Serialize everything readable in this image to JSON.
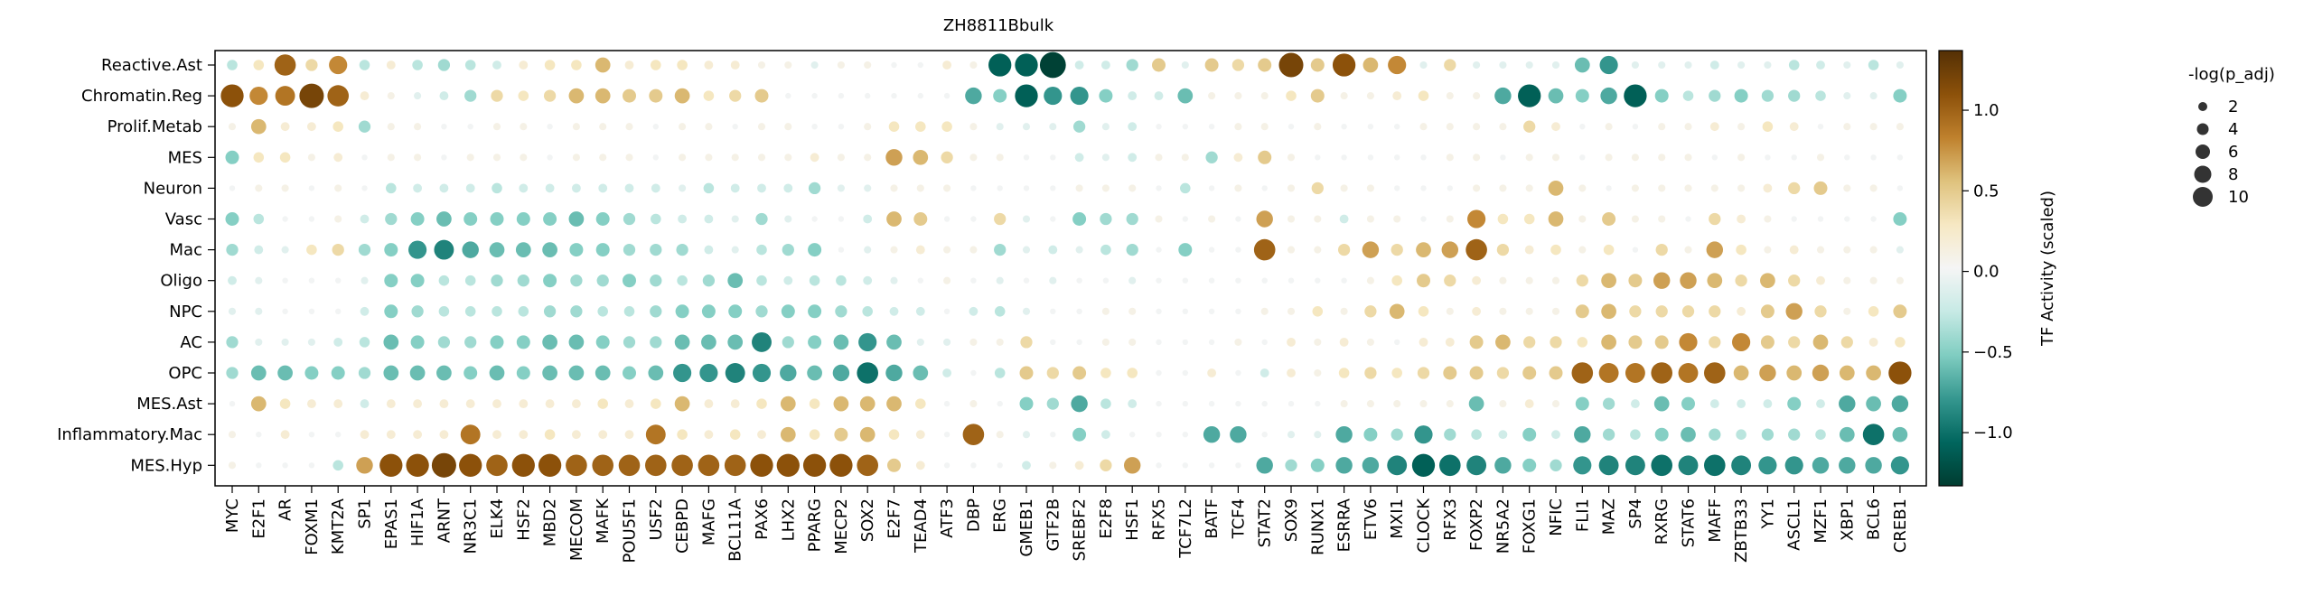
{
  "chart_data": {
    "type": "dotplot",
    "title": "ZH8811Bbulk",
    "rows": [
      "Reactive.Ast",
      "Chromatin.Reg",
      "Prolif.Metab",
      "MES",
      "Neuron",
      "Vasc",
      "Mac",
      "Oligo",
      "NPC",
      "AC",
      "OPC",
      "MES.Ast",
      "Inflammatory.Mac",
      "MES.Hyp"
    ],
    "columns": [
      "MYC",
      "E2F1",
      "AR",
      "FOXM1",
      "KMT2A",
      "SP1",
      "EPAS1",
      "HIF1A",
      "ARNT",
      "NR3C1",
      "ELK4",
      "HSF2",
      "MBD2",
      "MECOM",
      "MAFK",
      "POU5F1",
      "USF2",
      "CEBPD",
      "MAFG",
      "BCL11A",
      "PAX6",
      "LHX2",
      "PPARG",
      "MECP2",
      "SOX2",
      "E2F7",
      "TEAD4",
      "ATF3",
      "DBP",
      "ERG",
      "GMEB1",
      "GTF2B",
      "SREBF2",
      "E2F8",
      "HSF1",
      "RFX5",
      "TCF7L2",
      "BATF",
      "TCF4",
      "STAT2",
      "SOX9",
      "RUNX1",
      "ESRRA",
      "ETV6",
      "MXI1",
      "CLOCK",
      "RFX3",
      "FOXP2",
      "NR5A2",
      "FOXG1",
      "NFIC",
      "FLI1",
      "MAZ",
      "SP4",
      "RXRG",
      "STAT6",
      "MAFF",
      "ZBTB33",
      "YY1",
      "ASCL1",
      "MZF1",
      "XBP1",
      "BCL6",
      "CREB1"
    ],
    "activity": [
      [
        -0.3,
        0.3,
        1.0,
        0.4,
        0.8,
        -0.3,
        0.2,
        -0.3,
        -0.4,
        -0.3,
        -0.2,
        0.2,
        0.3,
        0.3,
        0.6,
        0.2,
        0.3,
        0.3,
        0.2,
        0.2,
        0.1,
        0.1,
        -0.1,
        0.1,
        0.1,
        0.0,
        0.0,
        0.2,
        0.1,
        -1.1,
        -1.1,
        -1.3,
        -0.2,
        -0.2,
        -0.4,
        0.5,
        -0.1,
        0.5,
        0.4,
        0.5,
        1.2,
        0.5,
        1.1,
        0.6,
        0.8,
        -0.1,
        0.4,
        -0.1,
        -0.1,
        -0.1,
        -0.1,
        -0.6,
        -0.8,
        -0.1,
        -0.1,
        -0.1,
        -0.2,
        -0.1,
        -0.1,
        -0.3,
        -0.2,
        -0.1,
        -0.3,
        -0.1
      ],
      [
        1.1,
        0.8,
        0.9,
        1.2,
        1.0,
        0.2,
        0.1,
        -0.1,
        -0.2,
        -0.4,
        0.4,
        0.3,
        0.4,
        0.6,
        0.6,
        0.5,
        0.5,
        0.6,
        0.3,
        0.4,
        0.5,
        0.0,
        0.0,
        0.0,
        0.0,
        0.0,
        0.0,
        0.0,
        -0.7,
        -0.5,
        -1.1,
        -0.8,
        -0.8,
        -0.5,
        -0.2,
        -0.2,
        -0.6,
        0.1,
        0.1,
        0.1,
        0.3,
        0.5,
        0.1,
        0.1,
        0.2,
        0.3,
        0.1,
        0.1,
        -0.7,
        -1.1,
        -0.6,
        -0.5,
        -0.7,
        -1.1,
        -0.5,
        -0.3,
        -0.4,
        -0.5,
        -0.4,
        -0.4,
        -0.3,
        -0.1,
        -0.1,
        -0.5
      ],
      [
        0.1,
        0.6,
        0.2,
        0.2,
        0.3,
        -0.4,
        0.1,
        0.1,
        0.0,
        0.0,
        0.1,
        0.1,
        0.0,
        0.1,
        0.1,
        0.1,
        0.0,
        0.1,
        0.1,
        0.0,
        0.1,
        0.1,
        0.0,
        0.0,
        0.1,
        0.3,
        0.3,
        0.3,
        0.1,
        -0.1,
        -0.1,
        -0.1,
        -0.4,
        -0.1,
        -0.2,
        0.0,
        0.0,
        0.0,
        0.1,
        0.1,
        0.0,
        0.1,
        0.0,
        0.0,
        0.0,
        0.1,
        0.1,
        0.1,
        0.1,
        0.4,
        0.2,
        0.0,
        0.1,
        0.0,
        0.1,
        0.1,
        0.2,
        0.1,
        0.3,
        0.2,
        0.0,
        0.1,
        0.1,
        0.1
      ],
      [
        -0.5,
        0.3,
        0.3,
        0.1,
        0.2,
        0.0,
        0.1,
        0.1,
        0.0,
        0.1,
        0.1,
        0.1,
        0.0,
        0.1,
        0.1,
        0.1,
        0.0,
        0.1,
        0.1,
        0.1,
        0.1,
        0.1,
        0.2,
        0.1,
        0.1,
        0.7,
        0.6,
        0.4,
        0.1,
        0.1,
        0.0,
        0.0,
        -0.2,
        -0.1,
        -0.2,
        0.1,
        0.1,
        -0.4,
        0.2,
        0.5,
        0.1,
        0.0,
        0.0,
        0.0,
        0.0,
        0.0,
        0.1,
        0.1,
        0.0,
        0.1,
        0.1,
        0.0,
        0.1,
        0.1,
        0.1,
        0.1,
        0.0,
        0.1,
        0.0,
        0.0,
        0.1,
        0.0,
        0.0,
        0.0
      ],
      [
        0.0,
        0.1,
        0.1,
        0.0,
        0.1,
        0.0,
        -0.3,
        -0.2,
        -0.2,
        -0.2,
        -0.3,
        -0.2,
        -0.2,
        -0.2,
        -0.2,
        -0.2,
        -0.2,
        -0.1,
        -0.3,
        -0.2,
        -0.2,
        -0.2,
        -0.4,
        -0.1,
        -0.1,
        0.1,
        0.1,
        0.1,
        0.0,
        0.0,
        0.0,
        0.0,
        0.1,
        0.1,
        0.1,
        0.0,
        -0.3,
        0.0,
        0.1,
        0.0,
        0.1,
        0.4,
        0.1,
        0.1,
        0.0,
        0.0,
        0.0,
        0.1,
        0.1,
        0.1,
        0.6,
        0.1,
        0.0,
        0.1,
        0.1,
        0.1,
        0.1,
        0.1,
        0.2,
        0.4,
        0.5,
        0.1,
        0.1,
        0.0
      ],
      [
        -0.5,
        -0.3,
        0.0,
        0.0,
        0.1,
        -0.2,
        -0.4,
        -0.5,
        -0.6,
        -0.5,
        -0.5,
        -0.5,
        -0.5,
        -0.6,
        -0.5,
        -0.4,
        -0.3,
        -0.2,
        -0.2,
        -0.1,
        -0.4,
        -0.1,
        0.0,
        0.0,
        -0.2,
        0.6,
        0.5,
        0.0,
        0.0,
        0.4,
        -0.1,
        0.0,
        -0.5,
        -0.4,
        -0.4,
        0.1,
        0.0,
        0.1,
        0.0,
        0.7,
        0.1,
        0.1,
        -0.2,
        0.1,
        0.1,
        0.0,
        0.1,
        0.8,
        0.3,
        0.3,
        0.6,
        0.1,
        0.5,
        0.1,
        0.1,
        0.0,
        0.4,
        0.2,
        0.1,
        0.0,
        0.0,
        0.0,
        0.0,
        -0.5
      ],
      [
        -0.4,
        -0.2,
        -0.1,
        0.3,
        0.4,
        -0.4,
        -0.5,
        -0.8,
        -0.9,
        -0.7,
        -0.6,
        -0.6,
        -0.6,
        -0.5,
        -0.5,
        -0.4,
        -0.4,
        -0.4,
        -0.2,
        -0.1,
        -0.3,
        -0.4,
        -0.5,
        0.0,
        -0.1,
        0.1,
        0.2,
        0.1,
        0.1,
        -0.4,
        -0.1,
        -0.2,
        -0.1,
        -0.3,
        -0.4,
        0.0,
        -0.5,
        0.0,
        0.0,
        1.0,
        0.1,
        0.1,
        0.4,
        0.7,
        0.4,
        0.6,
        0.7,
        1.0,
        0.4,
        0.2,
        0.3,
        0.1,
        0.3,
        0.0,
        0.4,
        0.1,
        0.7,
        0.3,
        0.1,
        0.2,
        0.1,
        0.1,
        0.1,
        -0.1
      ],
      [
        -0.2,
        -0.1,
        0.0,
        0.0,
        0.0,
        -0.1,
        -0.5,
        -0.5,
        -0.3,
        -0.3,
        -0.4,
        -0.4,
        -0.5,
        -0.4,
        -0.4,
        -0.5,
        -0.4,
        -0.3,
        -0.4,
        -0.6,
        -0.3,
        -0.2,
        -0.3,
        -0.3,
        -0.2,
        -0.1,
        0.0,
        0.1,
        0.0,
        -0.1,
        0.0,
        -0.1,
        0.0,
        0.0,
        -0.1,
        0.0,
        0.0,
        0.0,
        0.0,
        0.0,
        0.0,
        0.0,
        0.0,
        0.1,
        0.3,
        0.5,
        0.4,
        0.2,
        0.1,
        0.1,
        0.1,
        0.4,
        0.6,
        0.5,
        0.7,
        0.7,
        0.6,
        0.4,
        0.6,
        0.4,
        0.2,
        0.1,
        0.1,
        0.1
      ],
      [
        -0.1,
        -0.1,
        0.0,
        0.0,
        0.0,
        -0.2,
        -0.5,
        -0.4,
        -0.3,
        -0.3,
        -0.3,
        -0.3,
        -0.4,
        -0.4,
        -0.3,
        -0.3,
        -0.4,
        -0.5,
        -0.5,
        -0.5,
        -0.4,
        -0.5,
        -0.5,
        -0.4,
        -0.3,
        -0.2,
        -0.2,
        0.0,
        -0.2,
        -0.3,
        -0.1,
        0.0,
        0.0,
        0.1,
        0.1,
        0.0,
        0.0,
        0.0,
        0.0,
        0.1,
        0.1,
        0.3,
        0.1,
        0.4,
        0.6,
        0.3,
        0.1,
        0.2,
        0.1,
        0.1,
        0.1,
        0.5,
        0.6,
        0.4,
        0.4,
        0.4,
        0.4,
        0.2,
        0.5,
        0.7,
        0.4,
        0.1,
        0.3,
        0.5
      ],
      [
        -0.4,
        -0.1,
        -0.1,
        -0.1,
        -0.2,
        -0.3,
        -0.6,
        -0.5,
        -0.4,
        -0.4,
        -0.5,
        -0.5,
        -0.6,
        -0.6,
        -0.5,
        -0.4,
        -0.4,
        -0.6,
        -0.6,
        -0.6,
        -0.9,
        -0.4,
        -0.5,
        -0.6,
        -0.8,
        -0.6,
        -0.1,
        -0.1,
        0.1,
        0.1,
        0.4,
        0.0,
        0.0,
        0.1,
        0.1,
        0.0,
        0.0,
        0.0,
        0.1,
        0.0,
        0.2,
        0.1,
        0.2,
        0.1,
        0.0,
        0.2,
        0.2,
        0.5,
        0.6,
        0.4,
        0.4,
        0.3,
        0.6,
        0.5,
        0.5,
        0.8,
        0.4,
        0.8,
        0.5,
        0.4,
        0.6,
        0.4,
        0.2,
        0.3
      ],
      [
        -0.4,
        -0.6,
        -0.6,
        -0.5,
        -0.5,
        -0.4,
        -0.6,
        -0.6,
        -0.6,
        -0.5,
        -0.6,
        -0.5,
        -0.6,
        -0.6,
        -0.6,
        -0.5,
        -0.6,
        -0.8,
        -0.8,
        -0.9,
        -0.8,
        -0.7,
        -0.6,
        -0.7,
        -1.0,
        -0.7,
        -0.6,
        -0.2,
        0.0,
        -0.3,
        0.5,
        0.4,
        0.5,
        0.3,
        0.3,
        0.0,
        0.0,
        0.2,
        0.0,
        -0.2,
        0.2,
        0.1,
        0.3,
        0.4,
        0.3,
        0.4,
        0.5,
        0.5,
        0.4,
        0.5,
        0.5,
        1.0,
        0.9,
        0.9,
        1.0,
        0.9,
        1.0,
        0.6,
        0.7,
        0.6,
        0.7,
        0.6,
        0.6,
        1.1
      ],
      [
        0.0,
        0.6,
        0.3,
        0.2,
        0.2,
        -0.2,
        0.2,
        0.2,
        0.2,
        0.2,
        0.2,
        0.2,
        0.2,
        0.2,
        0.3,
        0.2,
        0.3,
        0.6,
        0.2,
        0.2,
        0.3,
        0.6,
        0.3,
        0.6,
        0.6,
        0.6,
        0.3,
        0.0,
        0.1,
        0.0,
        -0.5,
        -0.4,
        -0.7,
        -0.3,
        -0.2,
        0.0,
        0.0,
        0.0,
        0.0,
        0.0,
        0.0,
        0.0,
        0.1,
        0.1,
        0.1,
        0.1,
        0.1,
        -0.6,
        0.1,
        0.2,
        0.1,
        -0.5,
        -0.4,
        -0.2,
        -0.6,
        -0.5,
        -0.2,
        -0.2,
        -0.2,
        -0.5,
        -0.2,
        -0.7,
        -0.6,
        -0.7
      ],
      [
        0.1,
        0.0,
        0.2,
        0.0,
        0.0,
        0.2,
        0.2,
        0.2,
        0.2,
        0.9,
        0.2,
        0.2,
        0.3,
        0.2,
        0.2,
        0.2,
        0.9,
        0.3,
        0.2,
        0.3,
        0.2,
        0.6,
        0.3,
        0.5,
        0.6,
        0.3,
        0.2,
        0.0,
        1.0,
        0.1,
        -0.1,
        0.0,
        -0.5,
        -0.2,
        0.0,
        0.0,
        0.0,
        -0.7,
        -0.7,
        0.0,
        -0.1,
        -0.1,
        -0.7,
        -0.5,
        -0.4,
        -0.8,
        -0.4,
        -0.3,
        -0.2,
        -0.5,
        -0.2,
        -0.7,
        -0.4,
        -0.3,
        -0.5,
        -0.6,
        -0.4,
        -0.3,
        -0.4,
        -0.4,
        -0.3,
        -0.6,
        -1.0,
        -0.6
      ],
      [
        0.1,
        0.0,
        0.0,
        0.0,
        -0.3,
        0.7,
        1.1,
        1.1,
        1.2,
        1.1,
        1.0,
        1.1,
        1.1,
        1.0,
        1.0,
        1.0,
        1.0,
        1.0,
        1.0,
        1.0,
        1.1,
        1.1,
        1.1,
        1.1,
        1.0,
        0.5,
        0.2,
        0.0,
        0.0,
        0.0,
        -0.2,
        0.1,
        0.2,
        0.4,
        0.7,
        0.0,
        0.0,
        0.0,
        0.0,
        -0.7,
        -0.4,
        -0.5,
        -0.7,
        -0.7,
        -0.9,
        -1.1,
        -1.0,
        -0.9,
        -0.7,
        -0.5,
        -0.4,
        -0.8,
        -0.9,
        -0.9,
        -1.0,
        -0.9,
        -1.0,
        -0.9,
        -0.8,
        -0.8,
        -0.7,
        -0.7,
        -0.7,
        -0.8
      ]
    ],
    "color_scale": {
      "label": "TF Activity (scaled)",
      "min": -1.33,
      "max": 1.37,
      "ticks": [
        -1.0,
        -0.5,
        0.0,
        0.5,
        1.0
      ],
      "tick_labels": [
        "−1.0",
        "−0.5",
        "0.0",
        "0.5",
        "1.0"
      ],
      "stops": [
        "#003c30",
        "#01665e",
        "#35978f",
        "#80cdc1",
        "#c7eae5",
        "#f5f5f5",
        "#f6e8c3",
        "#dfc27d",
        "#bf812d",
        "#8c510a",
        "#543005"
      ]
    },
    "size_legend": {
      "title": "-log(p_adj)",
      "values": [
        2,
        4,
        6,
        8,
        10
      ],
      "labels": [
        "2",
        "4",
        "6",
        "8",
        "10"
      ],
      "dot_color": "#333333"
    }
  }
}
